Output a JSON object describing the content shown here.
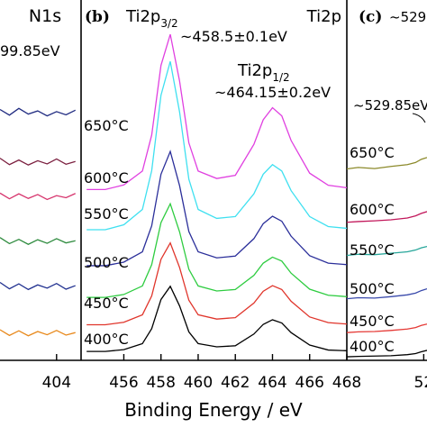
{
  "chart_data": [
    {
      "type": "line",
      "title": "N1s",
      "annotation": "99.85eV",
      "xlim": [
        401,
        405.3
      ],
      "xticks": [
        404
      ],
      "ylim": [
        0,
        100
      ],
      "x": [
        401,
        401.5,
        402,
        402.5,
        403,
        403.5,
        404,
        404.5,
        405
      ],
      "series": [
        {
          "color": "#1f2a80",
          "values": [
            70.5,
            68.9,
            70.8,
            69.2,
            70.1,
            68.7,
            69.9,
            69.0,
            70.3
          ]
        },
        {
          "color": "#7b1f3f",
          "values": [
            56.8,
            55.0,
            56.3,
            54.9,
            56.1,
            55.2,
            56.6,
            55.1,
            55.9
          ]
        },
        {
          "color": "#d6336c",
          "values": [
            47.0,
            45.4,
            46.8,
            45.5,
            46.6,
            45.2,
            46.3,
            45.7,
            46.9
          ]
        },
        {
          "color": "#2e8b3e",
          "values": [
            34.5,
            32.8,
            34.0,
            32.6,
            33.9,
            32.9,
            34.2,
            33.0,
            33.6
          ]
        },
        {
          "color": "#1f2f8f",
          "values": [
            21.9,
            20.1,
            21.5,
            19.9,
            21.2,
            20.3,
            21.6,
            20.0,
            21.0
          ]
        },
        {
          "color": "#e8891c",
          "values": [
            8.6,
            7.0,
            8.3,
            6.9,
            8.1,
            7.2,
            8.4,
            7.1,
            7.8
          ]
        }
      ]
    },
    {
      "type": "line",
      "panel_label": "(b)",
      "title": "Ti2p",
      "peak1": {
        "text": "Ti2p",
        "subscript": "3/2",
        "energy": "~458.5±0.1eV"
      },
      "peak2": {
        "text": "Ti2p",
        "subscript": "1/2",
        "energy": "~464.15±0.2eV"
      },
      "xlabel": "Binding Energy / eV",
      "xlim": [
        453.7,
        468
      ],
      "xticks": [
        456,
        458,
        460,
        462,
        464,
        466,
        468
      ],
      "ylim": [
        0,
        100
      ],
      "x": [
        454,
        455,
        456,
        457,
        457.5,
        458,
        458.5,
        459,
        459.5,
        460,
        461,
        462,
        463,
        463.5,
        464,
        464.5,
        465,
        466,
        467,
        468
      ],
      "series": [
        {
          "name": "400°C",
          "color": "#000000",
          "values": [
            2.5,
            2.5,
            3.0,
            4.7,
            8.9,
            17.1,
            20.8,
            15.3,
            8.0,
            4.7,
            3.8,
            4.1,
            7.4,
            10.1,
            11.4,
            10.5,
            7.8,
            4.3,
            2.9,
            2.7
          ]
        },
        {
          "name": "450°C",
          "color": "#e0352b",
          "values": [
            10,
            10,
            10.7,
            12.8,
            18.1,
            28.4,
            33,
            26.1,
            16.9,
            12.8,
            11.6,
            12,
            16.1,
            19.4,
            21,
            19.9,
            16.6,
            12.2,
            10.6,
            10.2
          ]
        },
        {
          "name": "500°C",
          "color": "#2ecc40",
          "values": [
            17.7,
            17.7,
            18.5,
            20.9,
            26.9,
            38.7,
            44,
            36.1,
            25.6,
            20.9,
            19.5,
            19.9,
            23.9,
            27.3,
            29,
            27.9,
            24.5,
            20,
            18.3,
            17.9
          ]
        },
        {
          "name": "550°C",
          "color": "#2b2f9a",
          "values": [
            26.6,
            26.6,
            27.6,
            30.5,
            37.8,
            52.3,
            58.7,
            49.1,
            36.2,
            30.5,
            28.8,
            29.3,
            34.2,
            38.4,
            40.5,
            39.1,
            34.9,
            29.4,
            27.3,
            26.9
          ]
        },
        {
          "name": "600°C",
          "color": "#3fe0f0",
          "values": [
            36.7,
            36.7,
            38.1,
            42.4,
            53.3,
            74.5,
            84,
            69.8,
            50.9,
            42.4,
            39.9,
            40.4,
            46.8,
            52.3,
            55,
            53.2,
            47.7,
            40.4,
            37.6,
            37.1
          ]
        },
        {
          "name": "650°C",
          "color": "#e040e0",
          "values": [
            48,
            48,
            49.3,
            53.2,
            63.3,
            82.9,
            91.6,
            78.5,
            61.1,
            53.2,
            51.1,
            52,
            60.7,
            67.6,
            71,
            68.7,
            61.8,
            52.6,
            49.2,
            48.5
          ]
        }
      ]
    },
    {
      "type": "line",
      "panel_label": "(c)",
      "annotations": [
        "~529",
        "~529.85eV"
      ],
      "xlim": [
        525.3,
        530.2
      ],
      "xticks": [
        {
          "value": 530,
          "label": "52"
        }
      ],
      "ylim": [
        0,
        100
      ],
      "x": [
        525.3,
        526,
        527,
        528,
        529,
        529.5,
        529.85,
        530.2
      ],
      "series": [
        {
          "name": "400°C",
          "color": "#000000",
          "values": [
            1.0,
            1.1,
            1.2,
            1.3,
            1.6,
            1.9,
            2.4,
            2.8
          ]
        },
        {
          "name": "450°C",
          "color": "#e53935",
          "values": [
            7.8,
            8.0,
            8.1,
            8.4,
            8.8,
            9.2,
            9.8,
            10.2
          ]
        },
        {
          "name": "500°C",
          "color": "#3949ab",
          "values": [
            17.3,
            17.6,
            17.5,
            17.9,
            18.4,
            18.9,
            19.6,
            20.1
          ]
        },
        {
          "name": "550°C",
          "color": "#26a69a",
          "values": [
            29.5,
            29.8,
            29.7,
            30.1,
            30.5,
            31.0,
            31.6,
            32.0
          ]
        },
        {
          "name": "600°C",
          "color": "#c2185b",
          "values": [
            38.8,
            39.0,
            39.2,
            39.5,
            40.0,
            40.6,
            41.3,
            41.8
          ]
        },
        {
          "name": "650°C",
          "color": "#8c8a2b",
          "values": [
            53.8,
            54.2,
            53.9,
            54.5,
            55.0,
            55.6,
            56.5,
            57.0
          ]
        }
      ]
    }
  ]
}
